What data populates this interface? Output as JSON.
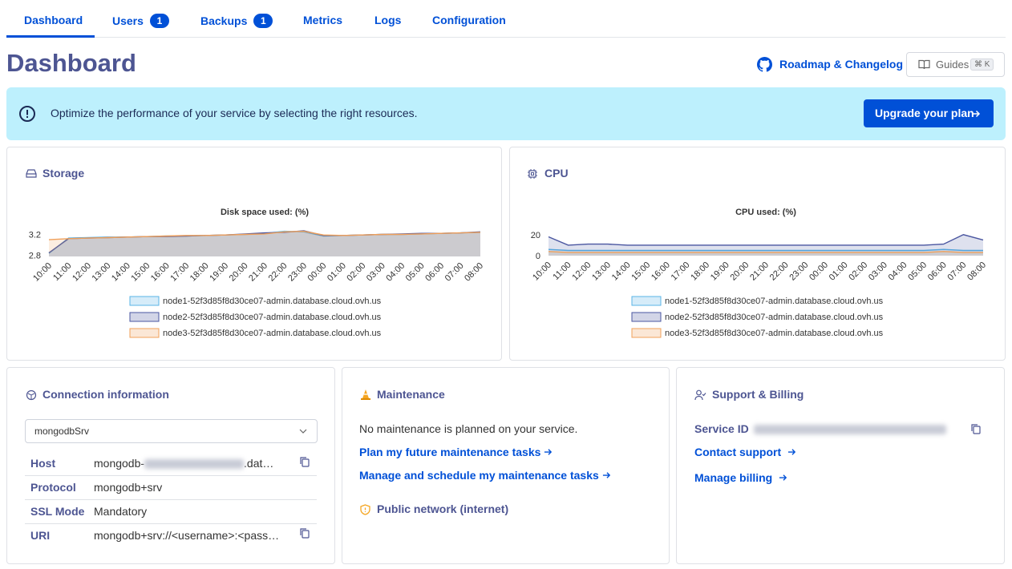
{
  "tabs": [
    {
      "label": "Dashboard"
    },
    {
      "label": "Users",
      "badge": 1
    },
    {
      "label": "Backups",
      "badge": 1
    },
    {
      "label": "Metrics"
    },
    {
      "label": "Logs"
    },
    {
      "label": "Configuration"
    }
  ],
  "header": {
    "title": "Dashboard",
    "roadmap_link": "Roadmap & Changelog",
    "guides_button": "Guides",
    "guides_shortcut": "⌘ K"
  },
  "banner": {
    "text": "Optimize the performance of your service by selecting the right resources.",
    "button": "Upgrade your plan"
  },
  "panels": {
    "storage": {
      "title": "Storage"
    },
    "cpu": {
      "title": "CPU"
    },
    "connection": {
      "title": "Connection information",
      "select": "mongodbSrv",
      "rows": [
        {
          "label": "Host",
          "value_prefix": "mongodb-",
          "value_suffix": ".dat…"
        },
        {
          "label": "Protocol",
          "value": "mongodb+srv"
        },
        {
          "label": "SSL Mode",
          "value": "Mandatory"
        },
        {
          "label": "URI",
          "value": "mongodb+srv://<username>:<pass…"
        }
      ]
    },
    "maintenance": {
      "title": "Maintenance",
      "text": "No maintenance is planned on your service.",
      "links": [
        "Plan my future maintenance tasks",
        "Manage and schedule my maintenance tasks"
      ],
      "network": "Public network (internet)"
    },
    "support": {
      "title": "Support & Billing",
      "service_id_label": "Service ID",
      "links": [
        "Contact support",
        "Manage billing"
      ]
    }
  },
  "chart_data": [
    {
      "type": "area",
      "title": "Disk space used: (%)",
      "categories": [
        "10:00",
        "11:00",
        "12:00",
        "13:00",
        "14:00",
        "15:00",
        "16:00",
        "17:00",
        "18:00",
        "19:00",
        "20:00",
        "21:00",
        "22:00",
        "23:00",
        "00:00",
        "01:00",
        "02:00",
        "03:00",
        "04:00",
        "05:00",
        "06:00",
        "07:00",
        "08:00"
      ],
      "series": [
        {
          "name": "node1-52f3d85f8d30ce07-admin.database.cloud.ovh.us",
          "color": "#5ab4e6",
          "values": [
            2.84,
            3.13,
            3.14,
            3.15,
            3.15,
            3.16,
            3.17,
            3.17,
            3.18,
            3.19,
            3.2,
            3.22,
            3.26,
            3.25,
            3.17,
            3.18,
            3.19,
            3.2,
            3.2,
            3.21,
            3.22,
            3.23,
            3.24
          ]
        },
        {
          "name": "node2-52f3d85f8d30ce07-admin.database.cloud.ovh.us",
          "color": "#4a56a0",
          "values": [
            2.85,
            3.12,
            3.13,
            3.14,
            3.15,
            3.16,
            3.16,
            3.17,
            3.18,
            3.19,
            3.21,
            3.23,
            3.24,
            3.27,
            3.18,
            3.18,
            3.19,
            3.2,
            3.21,
            3.22,
            3.22,
            3.23,
            3.25
          ]
        },
        {
          "name": "node3-52f3d85f8d30ce07-admin.database.cloud.ovh.us",
          "color": "#f0a05a",
          "values": [
            3.1,
            3.12,
            3.13,
            3.14,
            3.15,
            3.16,
            3.17,
            3.18,
            3.18,
            3.19,
            3.2,
            3.21,
            3.25,
            3.26,
            3.19,
            3.18,
            3.19,
            3.2,
            3.2,
            3.21,
            3.22,
            3.23,
            3.24
          ]
        }
      ],
      "ylim": [
        2.78,
        3.3
      ],
      "yticks": [
        2.8,
        3.2
      ]
    },
    {
      "type": "area",
      "title": "CPU used: (%)",
      "categories": [
        "10:00",
        "11:00",
        "12:00",
        "13:00",
        "14:00",
        "15:00",
        "16:00",
        "17:00",
        "18:00",
        "19:00",
        "20:00",
        "21:00",
        "22:00",
        "23:00",
        "00:00",
        "01:00",
        "02:00",
        "03:00",
        "04:00",
        "05:00",
        "06:00",
        "07:00",
        "08:00"
      ],
      "series": [
        {
          "name": "node1-52f3d85f8d30ce07-admin.database.cloud.ovh.us",
          "color": "#5ab4e6",
          "values": [
            6,
            5,
            5,
            5,
            5,
            5,
            5,
            5,
            5,
            5,
            5,
            5,
            5,
            5,
            5,
            5,
            5,
            5,
            5,
            5,
            6,
            5,
            5
          ]
        },
        {
          "name": "node2-52f3d85f8d30ce07-admin.database.cloud.ovh.us",
          "color": "#4a56a0",
          "values": [
            18,
            10,
            11,
            11,
            10,
            10,
            10,
            10,
            10,
            10,
            10,
            10,
            10,
            10,
            10,
            10,
            10,
            10,
            10,
            10,
            11,
            20,
            15
          ]
        },
        {
          "name": "node3-52f3d85f8d30ce07-admin.database.cloud.ovh.us",
          "color": "#f0a05a",
          "values": [
            4,
            3,
            3,
            3,
            3,
            3,
            3,
            3,
            3,
            3,
            3,
            3,
            3,
            3,
            3,
            3,
            3,
            3,
            3,
            3,
            4,
            3,
            3
          ]
        }
      ],
      "ylim": [
        0,
        26
      ],
      "yticks": [
        0,
        20
      ]
    }
  ]
}
